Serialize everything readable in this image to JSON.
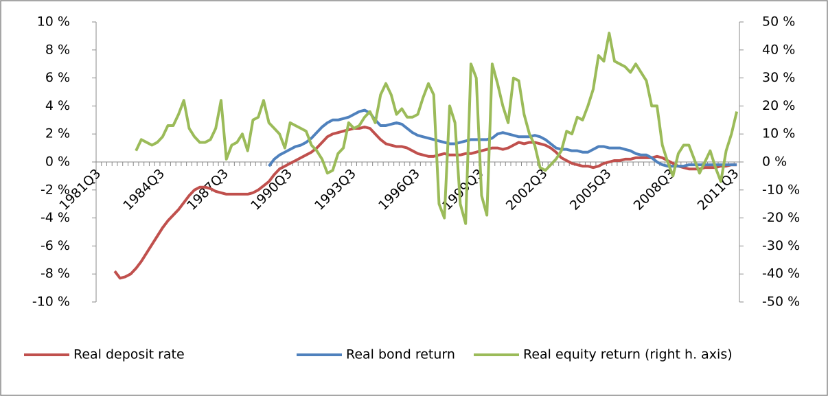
{
  "chart_data": {
    "type": "line",
    "categories": [
      "1981Q3",
      null,
      null,
      null,
      null,
      null,
      null,
      null,
      null,
      null,
      null,
      null,
      "1984Q3",
      null,
      null,
      null,
      null,
      null,
      null,
      null,
      null,
      null,
      null,
      null,
      "1987Q3",
      null,
      null,
      null,
      null,
      null,
      null,
      null,
      null,
      null,
      null,
      null,
      "1990Q3",
      null,
      null,
      null,
      null,
      null,
      null,
      null,
      null,
      null,
      null,
      null,
      "1993Q3",
      null,
      null,
      null,
      null,
      null,
      null,
      null,
      null,
      null,
      null,
      null,
      "1996Q3",
      null,
      null,
      null,
      null,
      null,
      null,
      null,
      null,
      null,
      null,
      null,
      "1999Q3",
      null,
      null,
      null,
      null,
      null,
      null,
      null,
      null,
      null,
      null,
      null,
      "2002Q3",
      null,
      null,
      null,
      null,
      null,
      null,
      null,
      null,
      null,
      null,
      null,
      "2005Q3",
      null,
      null,
      null,
      null,
      null,
      null,
      null,
      null,
      null,
      null,
      null,
      "2008Q3",
      null,
      null,
      null,
      null,
      null,
      null,
      null,
      null,
      null,
      null,
      null,
      "2011Q3"
    ],
    "series": [
      {
        "name": "Real deposit rate",
        "color": "#c0504d",
        "values": [
          null,
          null,
          null,
          -7.8,
          -8.3,
          -8.2,
          -8.0,
          -7.6,
          -7.1,
          -6.5,
          -5.9,
          -5.3,
          -4.7,
          -4.2,
          -3.8,
          -3.4,
          -2.9,
          -2.4,
          -2.0,
          -1.8,
          -1.8,
          -1.9,
          -2.1,
          -2.2,
          -2.3,
          -2.3,
          -2.3,
          -2.3,
          -2.3,
          -2.2,
          -2.0,
          -1.7,
          -1.4,
          -0.9,
          -0.5,
          -0.3,
          -0.1,
          0.1,
          0.3,
          0.5,
          0.7,
          1.0,
          1.4,
          1.8,
          2.0,
          2.1,
          2.2,
          2.3,
          2.4,
          2.4,
          2.5,
          2.4,
          2.0,
          1.6,
          1.3,
          1.2,
          1.1,
          1.1,
          1.0,
          0.8,
          0.6,
          0.5,
          0.4,
          0.4,
          0.5,
          0.6,
          0.5,
          0.5,
          0.5,
          0.6,
          0.6,
          0.7,
          0.8,
          0.9,
          1.0,
          1.0,
          0.9,
          1.0,
          1.2,
          1.4,
          1.3,
          1.4,
          1.4,
          1.3,
          1.2,
          1.0,
          0.7,
          0.3,
          0.1,
          -0.1,
          -0.2,
          -0.3,
          -0.3,
          -0.4,
          -0.3,
          -0.1,
          0.0,
          0.1,
          0.1,
          0.2,
          0.2,
          0.3,
          0.3,
          0.3,
          0.3,
          0.4,
          0.3,
          0.1,
          -0.1,
          -0.3,
          -0.4,
          -0.5,
          -0.5,
          -0.5,
          -0.4,
          -0.4,
          -0.4,
          -0.3,
          -0.3,
          -0.2,
          -0.2
        ]
      },
      {
        "name": "Real bond return",
        "color": "#4f81bd",
        "values": [
          null,
          null,
          null,
          null,
          null,
          null,
          null,
          null,
          null,
          null,
          null,
          null,
          null,
          null,
          null,
          null,
          null,
          null,
          null,
          null,
          null,
          null,
          null,
          null,
          null,
          null,
          null,
          null,
          null,
          null,
          null,
          null,
          -0.3,
          0.2,
          0.5,
          0.7,
          0.9,
          1.1,
          1.2,
          1.4,
          1.7,
          2.1,
          2.5,
          2.8,
          3.0,
          3.0,
          3.1,
          3.2,
          3.4,
          3.6,
          3.7,
          3.5,
          3.0,
          2.6,
          2.6,
          2.7,
          2.8,
          2.7,
          2.4,
          2.1,
          1.9,
          1.8,
          1.7,
          1.6,
          1.5,
          1.4,
          1.3,
          1.3,
          1.4,
          1.5,
          1.6,
          1.6,
          1.6,
          1.6,
          1.7,
          2.0,
          2.1,
          2.0,
          1.9,
          1.8,
          1.8,
          1.8,
          1.9,
          1.8,
          1.6,
          1.3,
          1.0,
          0.9,
          0.9,
          0.8,
          0.8,
          0.7,
          0.7,
          0.9,
          1.1,
          1.1,
          1.0,
          1.0,
          1.0,
          0.9,
          0.8,
          0.6,
          0.5,
          0.5,
          0.3,
          0.0,
          -0.2,
          -0.3,
          -0.3,
          -0.3,
          -0.3,
          -0.2,
          -0.2,
          -0.2,
          -0.2,
          -0.2,
          -0.2,
          -0.2,
          -0.2,
          -0.2,
          -0.2
        ]
      },
      {
        "name": "Real equity return (right h. axis)",
        "color": "#9bbb59",
        "axis": "y2",
        "values": [
          null,
          null,
          null,
          null,
          null,
          null,
          null,
          4,
          8,
          7,
          6,
          7,
          9,
          13,
          13,
          17,
          22,
          12,
          9,
          7,
          7,
          8,
          12,
          22,
          1,
          6,
          7,
          10,
          4,
          15,
          16,
          22,
          14,
          12,
          10,
          5,
          14,
          13,
          12,
          11,
          6,
          4,
          1,
          -4,
          -3,
          3,
          5,
          14,
          12,
          13,
          16,
          18,
          14,
          24,
          28,
          24,
          17,
          19,
          16,
          16,
          17,
          23,
          28,
          24,
          -15,
          -20,
          20,
          14,
          -15,
          -22,
          35,
          30,
          -12,
          -19,
          35,
          28,
          20,
          14,
          30,
          29,
          17,
          10,
          6,
          -2,
          -3,
          -1,
          1,
          4,
          11,
          10,
          16,
          15,
          20,
          26,
          38,
          36,
          46,
          36,
          35,
          34,
          32,
          35,
          32,
          29,
          20,
          20,
          6,
          0,
          -5,
          3,
          6,
          6,
          1,
          -4,
          0,
          4,
          -2,
          -7,
          4,
          10,
          18
        ]
      }
    ],
    "ylim": [
      -10,
      10
    ],
    "yticks": [
      {
        "value": -10,
        "label": "-10 %"
      },
      {
        "value": -8,
        "label": "-8 %"
      },
      {
        "value": -6,
        "label": "-6 %"
      },
      {
        "value": -4,
        "label": "-4 %"
      },
      {
        "value": -2,
        "label": "-2 %"
      },
      {
        "value": 0,
        "label": "0 %"
      },
      {
        "value": 2,
        "label": "2 %"
      },
      {
        "value": 4,
        "label": "4 %"
      },
      {
        "value": 6,
        "label": "6 %"
      },
      {
        "value": 8,
        "label": "8 %"
      },
      {
        "value": 10,
        "label": "10 %"
      }
    ],
    "y2lim": [
      -50,
      50
    ],
    "y2ticks": [
      {
        "value": -50,
        "label": "-50 %"
      },
      {
        "value": -40,
        "label": "-40 %"
      },
      {
        "value": -30,
        "label": "-30 %"
      },
      {
        "value": -20,
        "label": "-20 %"
      },
      {
        "value": -10,
        "label": "-10 %"
      },
      {
        "value": 0,
        "label": "0 %"
      },
      {
        "value": 10,
        "label": "10 %"
      },
      {
        "value": 20,
        "label": "20 %"
      },
      {
        "value": 30,
        "label": "30 %"
      },
      {
        "value": 40,
        "label": "40 %"
      },
      {
        "value": 50,
        "label": "50 %"
      }
    ],
    "legend": "bottom"
  }
}
